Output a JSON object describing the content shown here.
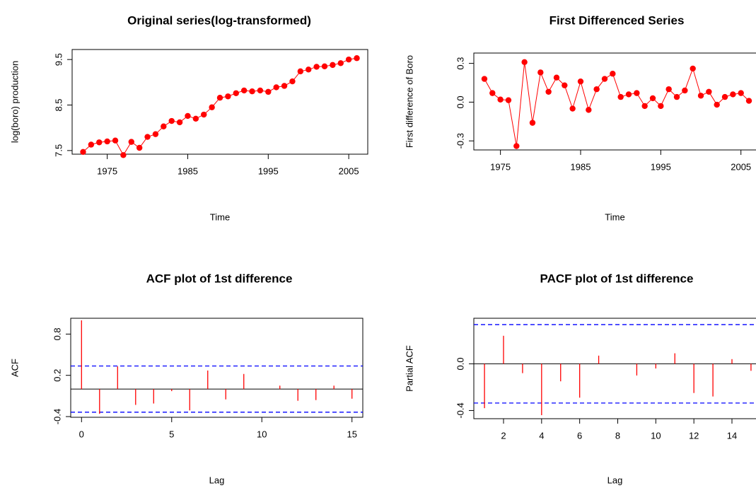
{
  "chart_data": [
    {
      "type": "line",
      "title": "Original series(log-transformed)",
      "x_label": "Time",
      "y_label": "log(boro) production",
      "x": [
        1972,
        1973,
        1974,
        1975,
        1976,
        1977,
        1978,
        1979,
        1980,
        1981,
        1982,
        1983,
        1984,
        1985,
        1986,
        1987,
        1988,
        1989,
        1990,
        1991,
        1992,
        1993,
        1994,
        1995,
        1996,
        1997,
        1998,
        1999,
        2000,
        2001,
        2002,
        2003,
        2004,
        2005,
        2006
      ],
      "values": [
        7.47,
        7.63,
        7.68,
        7.7,
        7.72,
        7.4,
        7.69,
        7.56,
        7.8,
        7.86,
        8.03,
        8.15,
        8.12,
        8.26,
        8.2,
        8.29,
        8.45,
        8.66,
        8.69,
        8.76,
        8.82,
        8.8,
        8.82,
        8.79,
        8.89,
        8.92,
        9.02,
        9.24,
        9.28,
        9.34,
        9.35,
        9.38,
        9.42,
        9.5,
        9.53
      ],
      "color": "#ff0000",
      "xlim": [
        1970.64,
        2007.36
      ],
      "xticks": [
        1975,
        1985,
        1995,
        2005
      ],
      "ylim": [
        7.42,
        9.72
      ],
      "yticks": [
        7.5,
        8.5,
        9.5
      ]
    },
    {
      "type": "line",
      "title": "First Differenced Series",
      "x_label": "Time",
      "y_label": "First difference of Boro",
      "x": [
        1973,
        1974,
        1975,
        1976,
        1977,
        1978,
        1979,
        1980,
        1981,
        1982,
        1983,
        1984,
        1985,
        1986,
        1987,
        1988,
        1989,
        1990,
        1991,
        1992,
        1993,
        1994,
        1995,
        1996,
        1997,
        1998,
        1999,
        2000,
        2001,
        2002,
        2003,
        2004,
        2005,
        2006
      ],
      "values": [
        0.18,
        0.07,
        0.02,
        0.015,
        -0.34,
        0.31,
        -0.16,
        0.23,
        0.08,
        0.19,
        0.13,
        -0.05,
        0.16,
        -0.06,
        0.1,
        0.18,
        0.22,
        0.04,
        0.06,
        0.07,
        -0.03,
        0.03,
        -0.03,
        0.1,
        0.04,
        0.09,
        0.26,
        0.05,
        0.08,
        -0.02,
        0.04,
        0.06,
        0.07,
        0.01
      ],
      "color": "#ff0000",
      "xlim": [
        1971.68,
        2007.32
      ],
      "xticks": [
        1975,
        1985,
        1995,
        2005
      ],
      "ylim": [
        -0.37,
        0.38
      ],
      "yticks": [
        -0.3,
        {
          "value": 0,
          "label": "0.0"
        },
        0.3
      ]
    },
    {
      "type": "acf",
      "title": "ACF plot of 1st difference",
      "x_label": "Lag",
      "y_label": "ACF",
      "x": [
        0,
        1,
        2,
        3,
        4,
        5,
        6,
        7,
        8,
        9,
        10,
        11,
        12,
        13,
        14,
        15
      ],
      "values": [
        1.0,
        -0.36,
        0.33,
        -0.23,
        -0.21,
        -0.03,
        -0.31,
        0.27,
        -0.15,
        0.22,
        0.0,
        0.05,
        -0.17,
        -0.16,
        0.05,
        -0.14
      ],
      "ci": 0.336,
      "color": "#ff0000",
      "ci_color": "#0000ff",
      "xlim": [
        -0.6,
        15.6
      ],
      "xticks": [
        0,
        5,
        10,
        15
      ],
      "ylim": [
        -0.41,
        1.03
      ],
      "yticks": [
        -0.4,
        0.2,
        0.8
      ]
    },
    {
      "type": "acf",
      "title": "PACF plot of 1st difference",
      "x_label": "Lag",
      "y_label": "Partial ACF",
      "x": [
        1,
        2,
        3,
        4,
        5,
        6,
        7,
        8,
        9,
        10,
        11,
        12,
        13,
        14,
        15
      ],
      "values": [
        -0.38,
        0.24,
        -0.08,
        -0.44,
        -0.15,
        -0.29,
        0.07,
        0.0,
        -0.1,
        -0.04,
        0.09,
        -0.25,
        -0.28,
        0.04,
        -0.06
      ],
      "ci": 0.336,
      "color": "#ff0000",
      "ci_color": "#0000ff",
      "xlim": [
        0.44,
        15.56
      ],
      "xticks": [
        2,
        4,
        6,
        8,
        10,
        12,
        14
      ],
      "ylim": [
        -0.47,
        0.39
      ],
      "yticks": [
        -0.4,
        {
          "value": 0,
          "label": "0.0"
        }
      ]
    }
  ]
}
